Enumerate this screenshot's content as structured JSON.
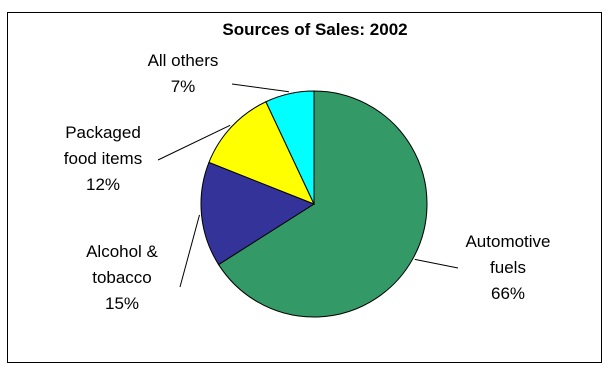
{
  "chart_data": {
    "type": "pie",
    "title": "Sources of Sales: 2002",
    "slices": [
      {
        "label_lines": [
          "Automotive",
          "fuels"
        ],
        "pct_label": "66%",
        "value": 66,
        "color": "#339966"
      },
      {
        "label_lines": [
          "Alcohol &",
          "tobacco"
        ],
        "pct_label": "15%",
        "value": 15,
        "color": "#333399"
      },
      {
        "label_lines": [
          "Packaged",
          "food items"
        ],
        "pct_label": "12%",
        "value": 12,
        "color": "#ffff00"
      },
      {
        "label_lines": [
          "All others"
        ],
        "pct_label": "7%",
        "value": 7,
        "color": "#00ffff"
      }
    ],
    "legend": "none",
    "start": "12 o'clock, clockwise"
  }
}
